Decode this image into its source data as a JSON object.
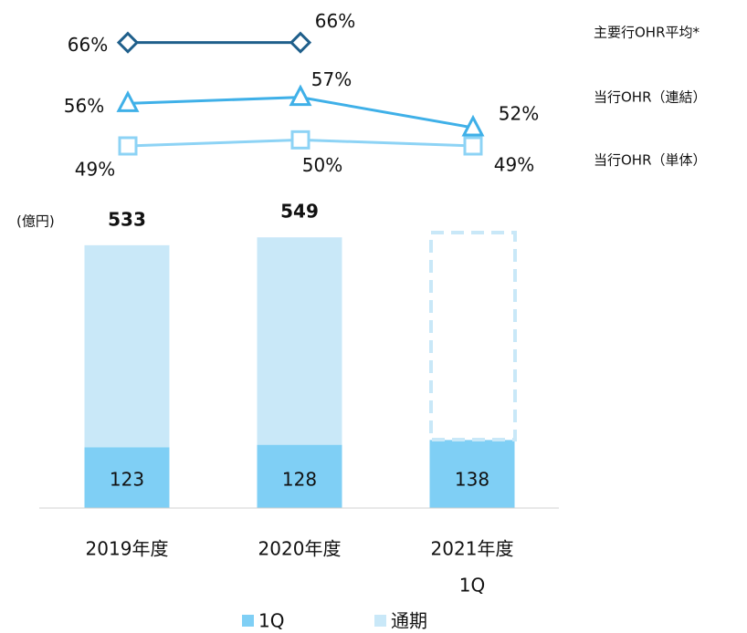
{
  "chart_data": [
    {
      "type": "bar",
      "unit": "(億円)",
      "categories": [
        [
          "2019年度"
        ],
        [
          "2020年度"
        ],
        [
          "2021年度",
          "1Q"
        ]
      ],
      "series": [
        {
          "name": "1Q",
          "color": "#7fcff5",
          "values": [
            123,
            128,
            138
          ]
        },
        {
          "name": "通期",
          "color": "#c9e8f8",
          "values": [
            533,
            549,
            null
          ]
        }
      ],
      "ylim": [
        0,
        640
      ]
    },
    {
      "type": "line",
      "series": [
        {
          "name": "主要行OHR平均*",
          "color": "#1f5f8b",
          "marker": "diamond",
          "values": [
            66,
            66,
            null
          ],
          "value_labels": [
            "66%",
            "66%",
            null
          ]
        },
        {
          "name": "当行OHR（連結）",
          "color": "#3fb0e8",
          "marker": "triangle",
          "values": [
            56,
            57,
            52
          ],
          "value_labels": [
            "56%",
            "57%",
            "52%"
          ]
        },
        {
          "name": "当行OHR（単体）",
          "color": "#8dd3f5",
          "marker": "square",
          "values": [
            49,
            50,
            49
          ],
          "value_labels": [
            "49%",
            "50%",
            "49%"
          ]
        }
      ],
      "ylim": [
        46,
        70
      ]
    }
  ]
}
